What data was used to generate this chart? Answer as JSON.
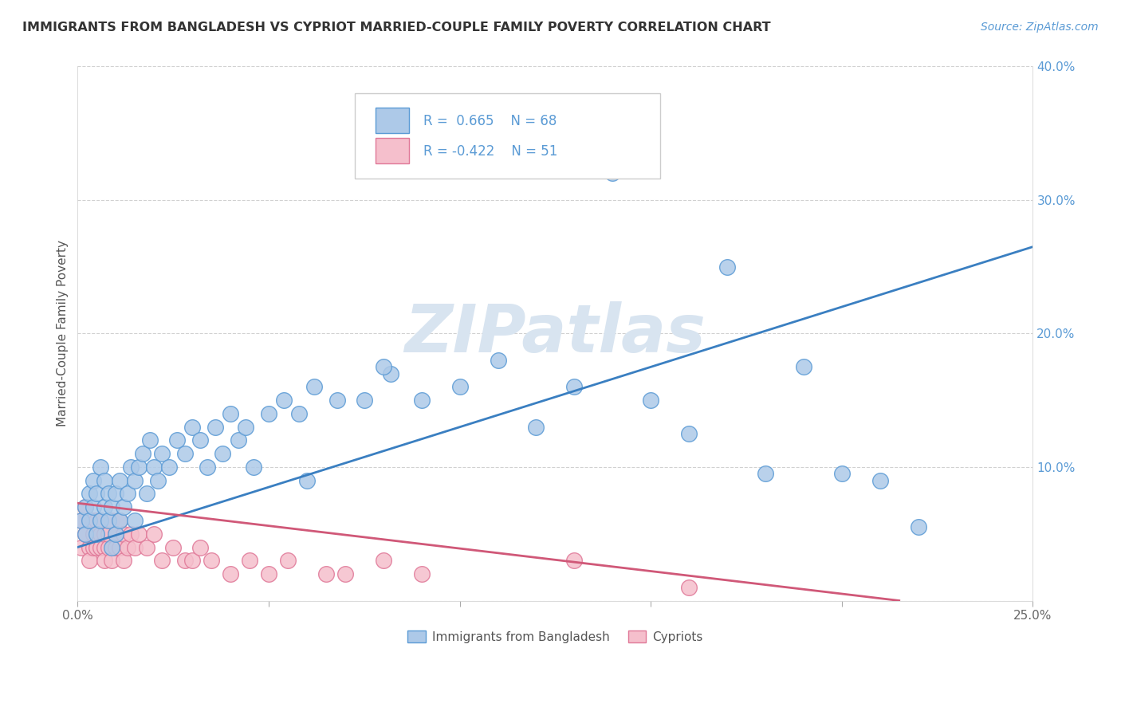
{
  "title": "IMMIGRANTS FROM BANGLADESH VS CYPRIOT MARRIED-COUPLE FAMILY POVERTY CORRELATION CHART",
  "source": "Source: ZipAtlas.com",
  "ylabel": "Married-Couple Family Poverty",
  "xlim": [
    0.0,
    0.25
  ],
  "ylim": [
    0.0,
    0.4
  ],
  "xtick_positions": [
    0.0,
    0.05,
    0.1,
    0.15,
    0.2,
    0.25
  ],
  "xtick_labels": [
    "0.0%",
    "",
    "",
    "",
    "",
    "25.0%"
  ],
  "ytick_positions": [
    0.0,
    0.1,
    0.2,
    0.3,
    0.4
  ],
  "ytick_labels": [
    "",
    "10.0%",
    "20.0%",
    "30.0%",
    "40.0%"
  ],
  "blue_R": 0.665,
  "blue_N": 68,
  "pink_R": -0.422,
  "pink_N": 51,
  "blue_color": "#adc9e8",
  "blue_edge_color": "#5b9bd5",
  "pink_color": "#f5bfcc",
  "pink_edge_color": "#e07898",
  "blue_line_color": "#3a7fc1",
  "pink_line_color": "#d05878",
  "watermark": "ZIPatlas",
  "watermark_color": "#d8e4f0",
  "legend1_label": "Immigrants from Bangladesh",
  "legend2_label": "Cypriots",
  "blue_line_x0": 0.0,
  "blue_line_y0": 0.04,
  "blue_line_x1": 0.25,
  "blue_line_y1": 0.265,
  "pink_line_x0": 0.0,
  "pink_line_y0": 0.073,
  "pink_line_x1": 0.215,
  "pink_line_y1": 0.0,
  "blue_x": [
    0.001,
    0.002,
    0.002,
    0.003,
    0.003,
    0.004,
    0.004,
    0.005,
    0.005,
    0.006,
    0.006,
    0.007,
    0.007,
    0.008,
    0.008,
    0.009,
    0.009,
    0.01,
    0.01,
    0.011,
    0.011,
    0.012,
    0.013,
    0.014,
    0.015,
    0.015,
    0.016,
    0.017,
    0.018,
    0.019,
    0.02,
    0.021,
    0.022,
    0.024,
    0.026,
    0.028,
    0.03,
    0.032,
    0.034,
    0.036,
    0.038,
    0.04,
    0.042,
    0.044,
    0.046,
    0.05,
    0.054,
    0.058,
    0.062,
    0.068,
    0.075,
    0.082,
    0.09,
    0.1,
    0.11,
    0.13,
    0.15,
    0.17,
    0.19,
    0.21,
    0.08,
    0.12,
    0.16,
    0.18,
    0.2,
    0.22,
    0.14,
    0.06
  ],
  "blue_y": [
    0.06,
    0.07,
    0.05,
    0.08,
    0.06,
    0.07,
    0.09,
    0.05,
    0.08,
    0.06,
    0.1,
    0.07,
    0.09,
    0.06,
    0.08,
    0.07,
    0.04,
    0.05,
    0.08,
    0.06,
    0.09,
    0.07,
    0.08,
    0.1,
    0.06,
    0.09,
    0.1,
    0.11,
    0.08,
    0.12,
    0.1,
    0.09,
    0.11,
    0.1,
    0.12,
    0.11,
    0.13,
    0.12,
    0.1,
    0.13,
    0.11,
    0.14,
    0.12,
    0.13,
    0.1,
    0.14,
    0.15,
    0.14,
    0.16,
    0.15,
    0.15,
    0.17,
    0.15,
    0.16,
    0.18,
    0.16,
    0.15,
    0.25,
    0.175,
    0.09,
    0.175,
    0.13,
    0.125,
    0.095,
    0.095,
    0.055,
    0.32,
    0.09
  ],
  "pink_x": [
    0.001,
    0.001,
    0.002,
    0.002,
    0.003,
    0.003,
    0.003,
    0.004,
    0.004,
    0.004,
    0.005,
    0.005,
    0.005,
    0.006,
    0.006,
    0.006,
    0.007,
    0.007,
    0.007,
    0.008,
    0.008,
    0.009,
    0.009,
    0.01,
    0.01,
    0.011,
    0.011,
    0.012,
    0.012,
    0.013,
    0.014,
    0.015,
    0.016,
    0.018,
    0.02,
    0.022,
    0.025,
    0.028,
    0.03,
    0.032,
    0.035,
    0.04,
    0.045,
    0.05,
    0.055,
    0.065,
    0.07,
    0.08,
    0.09,
    0.13,
    0.16
  ],
  "pink_y": [
    0.06,
    0.04,
    0.07,
    0.05,
    0.06,
    0.04,
    0.03,
    0.05,
    0.06,
    0.04,
    0.04,
    0.06,
    0.05,
    0.05,
    0.04,
    0.06,
    0.04,
    0.05,
    0.03,
    0.04,
    0.05,
    0.03,
    0.06,
    0.05,
    0.04,
    0.04,
    0.06,
    0.05,
    0.03,
    0.04,
    0.05,
    0.04,
    0.05,
    0.04,
    0.05,
    0.03,
    0.04,
    0.03,
    0.03,
    0.04,
    0.03,
    0.02,
    0.03,
    0.02,
    0.03,
    0.02,
    0.02,
    0.03,
    0.02,
    0.03,
    0.01
  ]
}
